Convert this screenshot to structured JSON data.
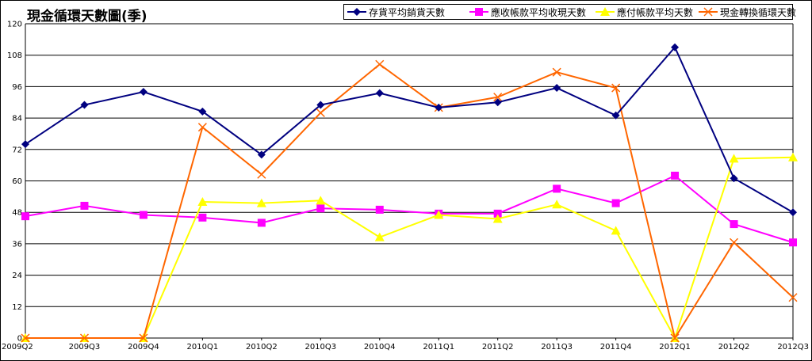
{
  "chart_data": {
    "type": "line",
    "title": "現金循環天數圖(季)",
    "categories": [
      "2009Q2",
      "2009Q3",
      "2009Q4",
      "2010Q1",
      "2010Q2",
      "2010Q3",
      "2010Q4",
      "2011Q1",
      "2011Q2",
      "2011Q3",
      "2011Q4",
      "2012Q1",
      "2012Q2",
      "2012Q3"
    ],
    "ylim": [
      0,
      120
    ],
    "yticks": [
      "0",
      "12",
      "24",
      "36",
      "48",
      "60",
      "72",
      "84",
      "96",
      "108",
      "120"
    ],
    "grid": true,
    "legend_position": "top-right",
    "series": [
      {
        "name": "存貨平均銷貨天數",
        "color": "#000080",
        "marker": "diamond",
        "values": [
          74,
          89,
          94,
          86.5,
          70,
          89,
          93.5,
          88,
          90,
          95.5,
          85,
          111,
          61,
          48
        ]
      },
      {
        "name": "應收帳款平均收現天數",
        "color": "#ff00ff",
        "marker": "square",
        "values": [
          46.5,
          50.5,
          47,
          46,
          44,
          49.5,
          49,
          47.5,
          47.5,
          57,
          51.5,
          62,
          43.5,
          36.5
        ]
      },
      {
        "name": "應付帳款平均天數",
        "color": "#ffff00",
        "marker": "triangle",
        "values": [
          0,
          0,
          0,
          52,
          51.5,
          52.5,
          38.5,
          47,
          45.5,
          51,
          41,
          0,
          68.5,
          69
        ]
      },
      {
        "name": "現金轉換循環天數",
        "color": "#ff6600",
        "marker": "x",
        "values": [
          0,
          0,
          0,
          80.5,
          62.5,
          86,
          104.5,
          88,
          92,
          101.5,
          95.5,
          0,
          36.5,
          15.5
        ]
      }
    ]
  }
}
